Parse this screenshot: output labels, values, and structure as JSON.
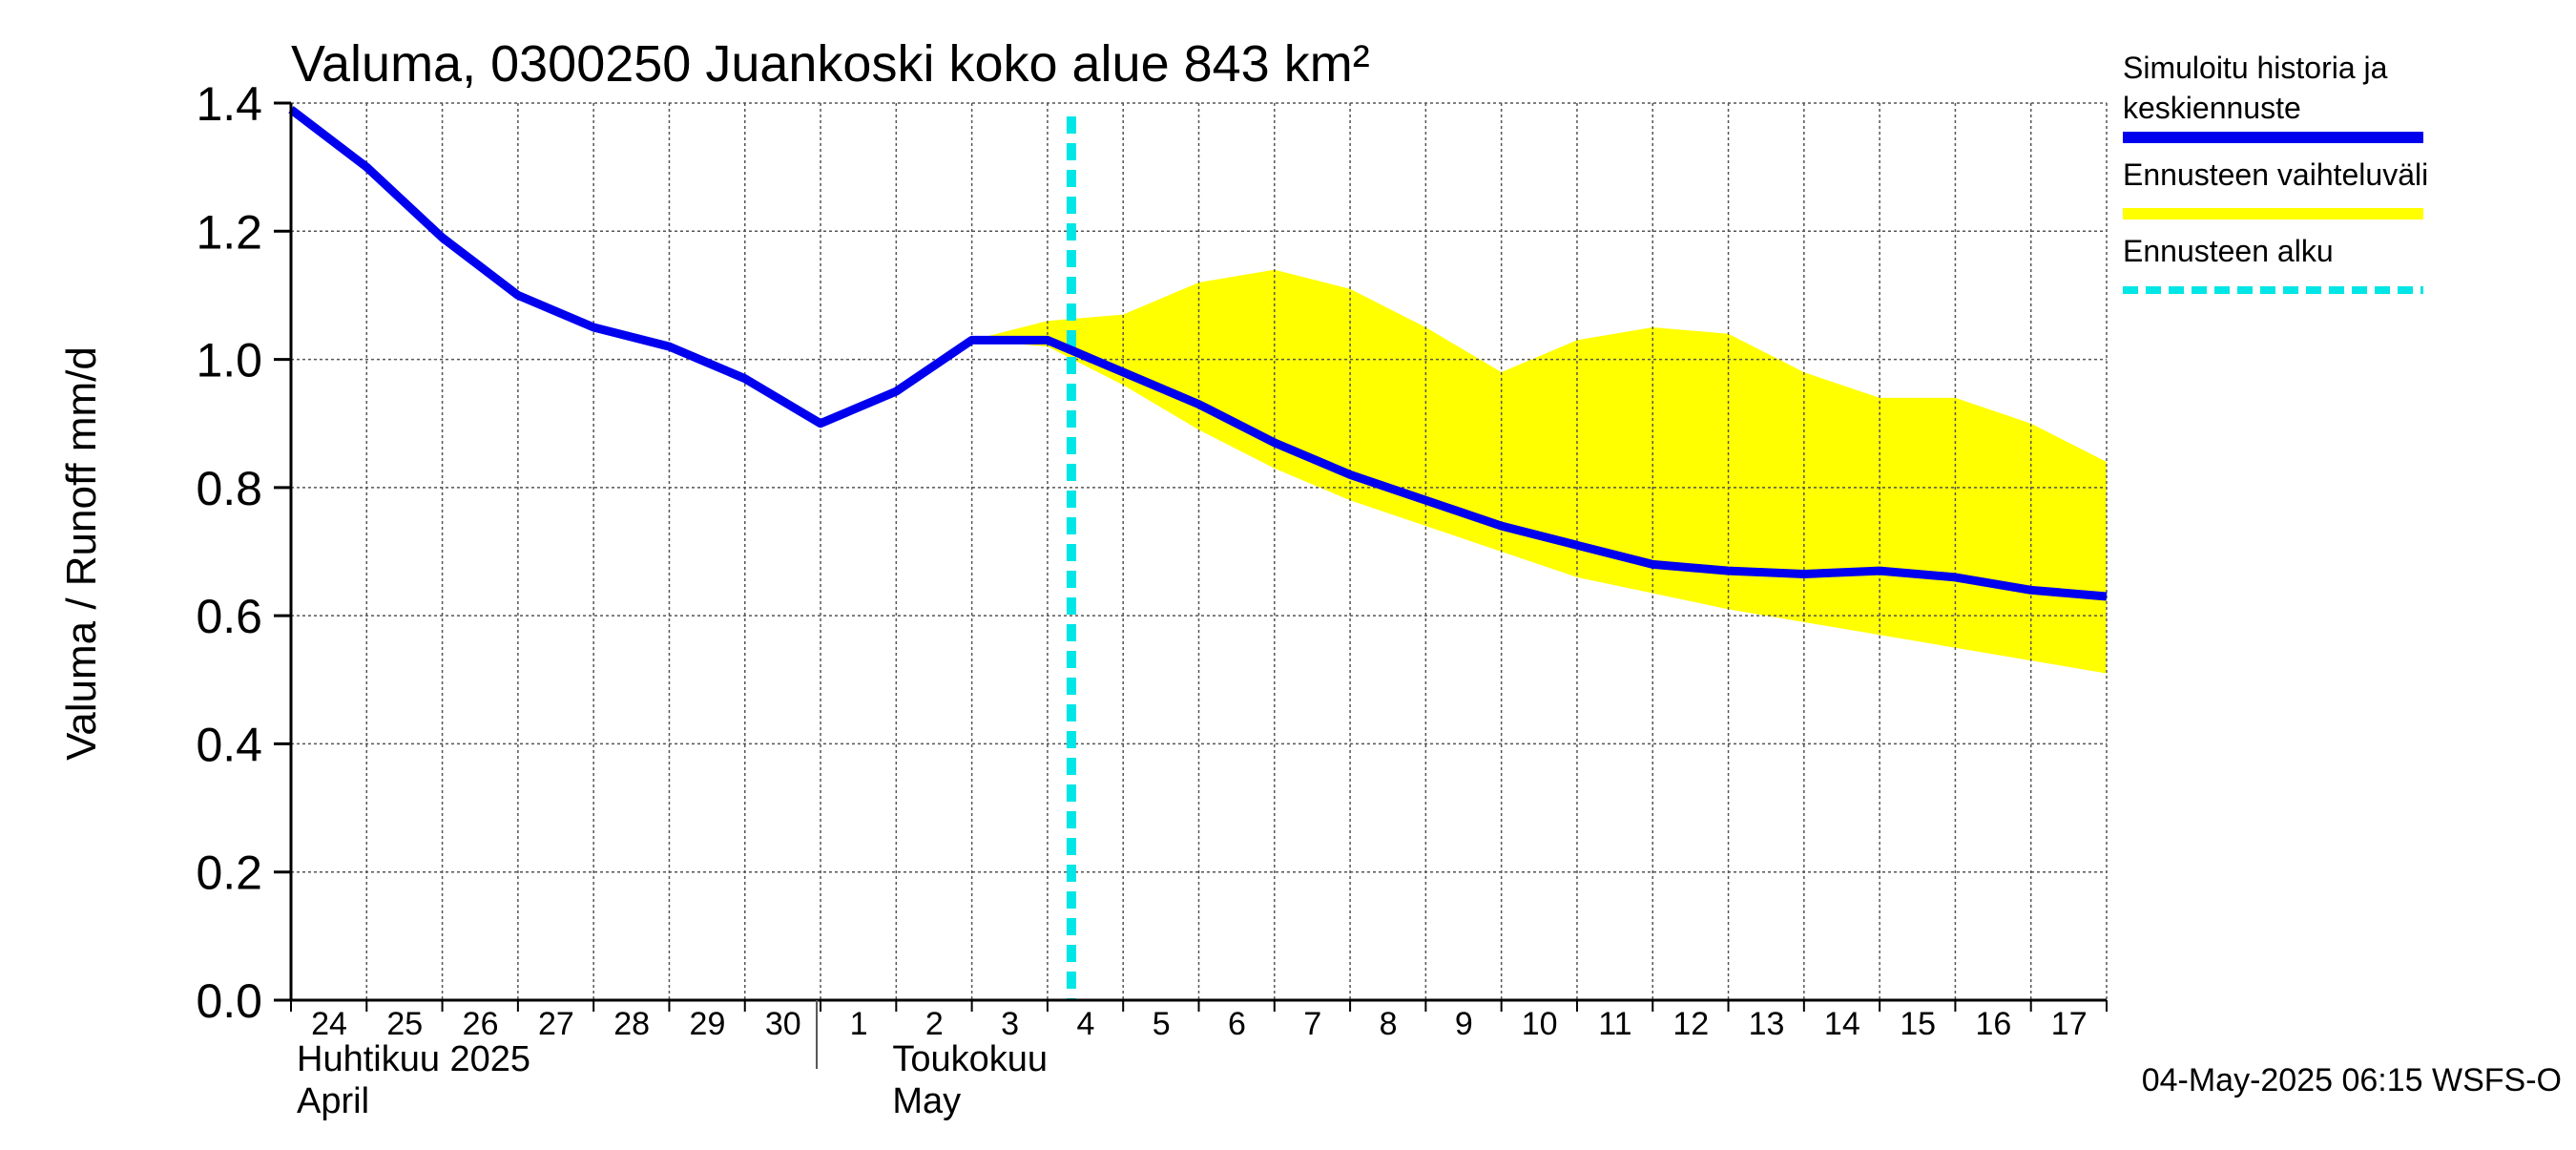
{
  "chart_data": {
    "type": "line",
    "title": "Valuma, 0300250 Juankoski koko alue 843 km²",
    "ylabel": "Valuma / Runoff    mm/d",
    "ylim": [
      0,
      1.4
    ],
    "yticks": [
      "0.0",
      "0.2",
      "0.4",
      "0.6",
      "0.8",
      "1.0",
      "1.2",
      "1.4"
    ],
    "x_day_labels": [
      "24",
      "25",
      "26",
      "27",
      "28",
      "29",
      "30",
      "1",
      "2",
      "3",
      "4",
      "5",
      "6",
      "7",
      "8",
      "9",
      "10",
      "11",
      "12",
      "13",
      "14",
      "15",
      "16",
      "17"
    ],
    "month_labels": [
      {
        "line1": "Huhtikuu  2025",
        "line2": "April"
      },
      {
        "line1": "Toukokuu",
        "line2": "May"
      }
    ],
    "forecast_start": "2025-05-04",
    "series": [
      {
        "name": "Simuloitu historia ja keskiennuste",
        "color": "#0000ee",
        "x": [
          "2025-04-24",
          "2025-04-25",
          "2025-04-26",
          "2025-04-27",
          "2025-04-28",
          "2025-04-29",
          "2025-04-30",
          "2025-05-01",
          "2025-05-02",
          "2025-05-03",
          "2025-05-04",
          "2025-05-05",
          "2025-05-06",
          "2025-05-07",
          "2025-05-08",
          "2025-05-09",
          "2025-05-10",
          "2025-05-11",
          "2025-05-12",
          "2025-05-13",
          "2025-05-14",
          "2025-05-15",
          "2025-05-16",
          "2025-05-17",
          "2025-05-18"
        ],
        "values": [
          1.39,
          1.3,
          1.19,
          1.1,
          1.05,
          1.02,
          0.97,
          0.9,
          0.95,
          1.03,
          1.03,
          0.98,
          0.93,
          0.87,
          0.82,
          0.78,
          0.74,
          0.71,
          0.68,
          0.67,
          0.665,
          0.67,
          0.66,
          0.64,
          0.63
        ]
      },
      {
        "name": "Ennusteen vaihteluväli",
        "color": "#ffff00",
        "type": "band",
        "x": [
          "2025-05-03",
          "2025-05-04",
          "2025-05-05",
          "2025-05-06",
          "2025-05-07",
          "2025-05-08",
          "2025-05-09",
          "2025-05-10",
          "2025-05-11",
          "2025-05-12",
          "2025-05-13",
          "2025-05-14",
          "2025-05-15",
          "2025-05-16",
          "2025-05-17",
          "2025-05-18"
        ],
        "upper": [
          1.03,
          1.06,
          1.07,
          1.12,
          1.14,
          1.11,
          1.05,
          0.98,
          1.03,
          1.05,
          1.04,
          0.98,
          0.94,
          0.94,
          0.9,
          0.84
        ],
        "lower": [
          1.03,
          1.02,
          0.96,
          0.89,
          0.83,
          0.78,
          0.74,
          0.7,
          0.66,
          0.635,
          0.61,
          0.59,
          0.57,
          0.55,
          0.53,
          0.51
        ]
      }
    ],
    "legend": {
      "placement": "right",
      "items": [
        {
          "line1": "Simuloitu historia ja",
          "line2": "keskiennuste",
          "color": "#0000ee",
          "style": "solid"
        },
        {
          "line1": "Ennusteen vaihteluväli",
          "line2": "",
          "color": "#ffff00",
          "style": "solid"
        },
        {
          "line1": "Ennusteen alku",
          "line2": "",
          "color": "#00e5e5",
          "style": "dashed"
        }
      ]
    },
    "footer": "04-May-2025 06:15 WSFS-O",
    "grid": true
  }
}
